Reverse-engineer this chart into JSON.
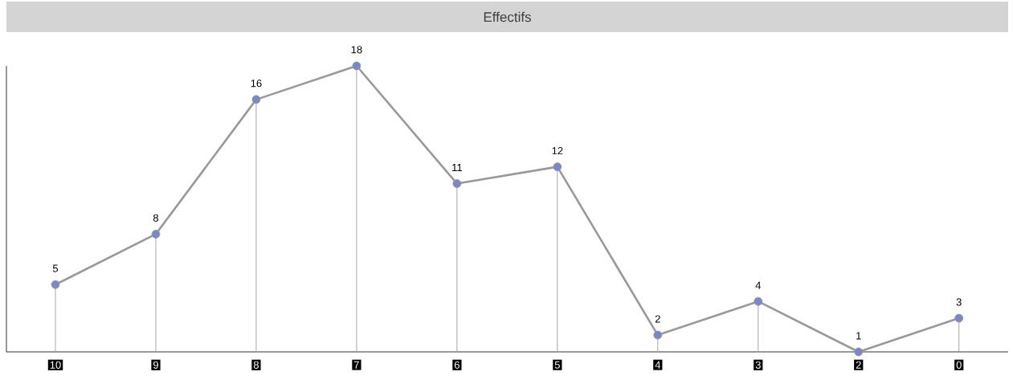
{
  "chart_data": {
    "type": "line",
    "title": "Effectifs",
    "categories": [
      "10",
      "9",
      "8",
      "7",
      "6",
      "5",
      "4",
      "3",
      "2",
      "0"
    ],
    "values": [
      5,
      8,
      16,
      18,
      11,
      12,
      2,
      4,
      1,
      3
    ],
    "color": "#999999",
    "marker": "circle",
    "colors": [
      "#7b88c8",
      "#7b88c8",
      "#7b88c8",
      "#7b88c8",
      "#7b88c8",
      "#7b88c8",
      "#7b88c8",
      "#7b88c8",
      "#7b88c8",
      "#7b88c8"
    ],
    "ylim": [
      1,
      18
    ],
    "tick_labels": "x",
    "data_labels": true
  }
}
